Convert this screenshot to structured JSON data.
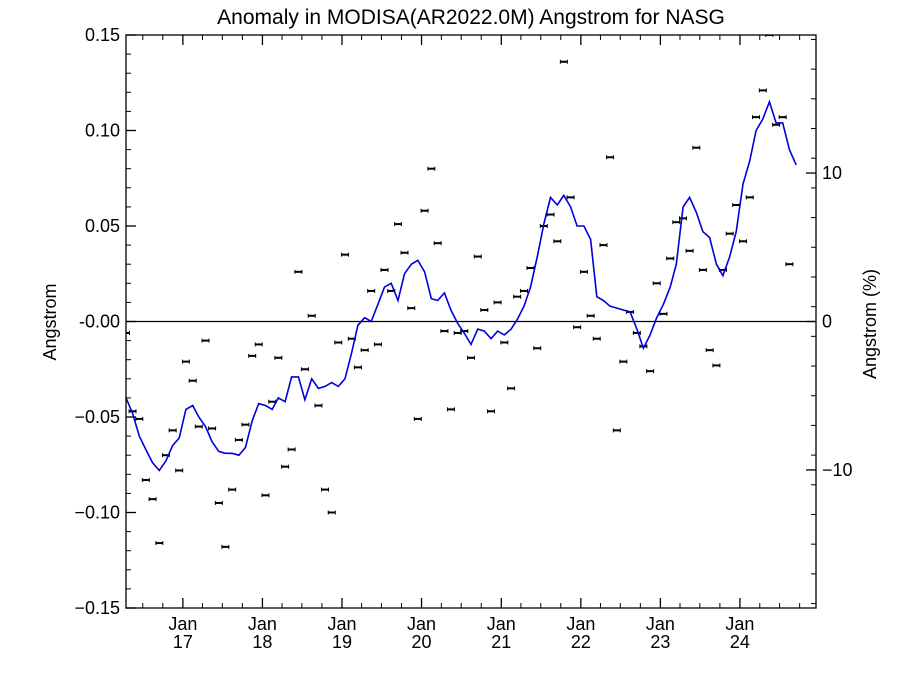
{
  "chart_data": {
    "type": "line",
    "title": "Anomaly in MODISA(AR2022.0M) Angstrom for NASG",
    "ylabel": "Angstrom",
    "y2label": "Angstrom (%)",
    "ylim": [
      -0.15,
      0.15
    ],
    "y2lim": [
      -19.3,
      19.3
    ],
    "xlim": [
      "2016-04-15",
      "2024-12-15"
    ],
    "yticks": [
      "0.15",
      "0.10",
      "0.05",
      "-0.00",
      "−0.05",
      "−0.10",
      "−0.15"
    ],
    "y2ticks": [
      "10",
      "0",
      "−10"
    ],
    "xticks": [
      {
        "month": "Jan",
        "year": "17",
        "date": "2017-01-01"
      },
      {
        "month": "Jan",
        "year": "18",
        "date": "2018-01-01"
      },
      {
        "month": "Jan",
        "year": "19",
        "date": "2019-01-01"
      },
      {
        "month": "Jan",
        "year": "20",
        "date": "2020-01-01"
      },
      {
        "month": "Jan",
        "year": "21",
        "date": "2021-01-01"
      },
      {
        "month": "Jan",
        "year": "22",
        "date": "2022-01-01"
      },
      {
        "month": "Jan",
        "year": "23",
        "date": "2023-01-01"
      },
      {
        "month": "Jan",
        "year": "24",
        "date": "2024-01-01"
      }
    ],
    "zero_line": true,
    "series": [
      {
        "kind": "monthly points",
        "style": "points with small error bars",
        "color": "#000000",
        "points": [
          [
            "2016-04-15",
            -0.006
          ],
          [
            "2016-05-15",
            -0.047
          ],
          [
            "2016-06-15",
            -0.051
          ],
          [
            "2016-07-15",
            -0.083
          ],
          [
            "2016-08-15",
            -0.093
          ],
          [
            "2016-09-15",
            -0.116
          ],
          [
            "2016-10-15",
            -0.07
          ],
          [
            "2016-11-15",
            -0.057
          ],
          [
            "2016-12-15",
            -0.078
          ],
          [
            "2017-01-15",
            -0.021
          ],
          [
            "2017-02-15",
            -0.031
          ],
          [
            "2017-03-15",
            -0.055
          ],
          [
            "2017-04-15",
            -0.01
          ],
          [
            "2017-05-15",
            -0.056
          ],
          [
            "2017-06-15",
            -0.095
          ],
          [
            "2017-07-15",
            -0.118
          ],
          [
            "2017-08-15",
            -0.088
          ],
          [
            "2017-09-15",
            -0.062
          ],
          [
            "2017-10-15",
            -0.054
          ],
          [
            "2017-11-15",
            -0.018
          ],
          [
            "2017-12-15",
            -0.012
          ],
          [
            "2018-01-15",
            -0.091
          ],
          [
            "2018-02-15",
            -0.042
          ],
          [
            "2018-03-15",
            -0.019
          ],
          [
            "2018-04-15",
            -0.076
          ],
          [
            "2018-05-15",
            -0.067
          ],
          [
            "2018-06-15",
            0.026
          ],
          [
            "2018-07-15",
            -0.025
          ],
          [
            "2018-08-15",
            0.003
          ],
          [
            "2018-09-15",
            -0.044
          ],
          [
            "2018-10-15",
            -0.088
          ],
          [
            "2018-11-15",
            -0.1
          ],
          [
            "2018-12-15",
            -0.011
          ],
          [
            "2019-01-15",
            0.035
          ],
          [
            "2019-02-15",
            -0.009
          ],
          [
            "2019-03-15",
            -0.024
          ],
          [
            "2019-04-15",
            -0.015
          ],
          [
            "2019-05-15",
            0.016
          ],
          [
            "2019-06-15",
            -0.012
          ],
          [
            "2019-07-15",
            0.027
          ],
          [
            "2019-08-15",
            0.016
          ],
          [
            "2019-09-15",
            0.051
          ],
          [
            "2019-10-15",
            0.036
          ],
          [
            "2019-11-15",
            0.007
          ],
          [
            "2019-12-15",
            -0.051
          ],
          [
            "2020-01-15",
            0.058
          ],
          [
            "2020-02-15",
            0.08
          ],
          [
            "2020-03-15",
            0.041
          ],
          [
            "2020-04-15",
            -0.005
          ],
          [
            "2020-05-15",
            -0.046
          ],
          [
            "2020-06-15",
            -0.006
          ],
          [
            "2020-07-15",
            -0.005
          ],
          [
            "2020-08-15",
            -0.019
          ],
          [
            "2020-09-15",
            0.034
          ],
          [
            "2020-10-15",
            0.006
          ],
          [
            "2020-11-15",
            -0.047
          ],
          [
            "2020-12-15",
            0.01
          ],
          [
            "2021-01-15",
            -0.011
          ],
          [
            "2021-02-15",
            -0.035
          ],
          [
            "2021-03-15",
            0.013
          ],
          [
            "2021-04-15",
            0.016
          ],
          [
            "2021-05-15",
            0.028
          ],
          [
            "2021-06-15",
            -0.014
          ],
          [
            "2021-07-15",
            0.05
          ],
          [
            "2021-08-15",
            0.056
          ],
          [
            "2021-09-15",
            0.042
          ],
          [
            "2021-10-15",
            0.136
          ],
          [
            "2021-11-15",
            0.065
          ],
          [
            "2021-12-15",
            -0.003
          ],
          [
            "2022-01-15",
            0.026
          ],
          [
            "2022-02-15",
            0.003
          ],
          [
            "2022-03-15",
            -0.009
          ],
          [
            "2022-04-15",
            0.04
          ],
          [
            "2022-05-15",
            0.086
          ],
          [
            "2022-06-15",
            -0.057
          ],
          [
            "2022-07-15",
            -0.021
          ],
          [
            "2022-08-15",
            0.005
          ],
          [
            "2022-09-15",
            -0.006
          ],
          [
            "2022-10-15",
            -0.013
          ],
          [
            "2022-11-15",
            -0.026
          ],
          [
            "2022-12-15",
            0.02
          ],
          [
            "2023-01-15",
            0.004
          ],
          [
            "2023-02-15",
            0.033
          ],
          [
            "2023-03-15",
            0.052
          ],
          [
            "2023-04-15",
            0.054
          ],
          [
            "2023-05-15",
            0.037
          ],
          [
            "2023-06-15",
            0.091
          ],
          [
            "2023-07-15",
            0.027
          ],
          [
            "2023-08-15",
            -0.015
          ],
          [
            "2023-09-15",
            -0.023
          ],
          [
            "2023-10-15",
            0.027
          ],
          [
            "2023-11-15",
            0.046
          ],
          [
            "2023-12-15",
            0.061
          ],
          [
            "2024-01-15",
            0.042
          ],
          [
            "2024-02-15",
            0.065
          ],
          [
            "2024-03-15",
            0.107
          ],
          [
            "2024-04-15",
            0.121
          ],
          [
            "2024-05-15",
            0.15
          ],
          [
            "2024-06-15",
            0.103
          ],
          [
            "2024-07-15",
            0.107
          ],
          [
            "2024-08-15",
            0.03
          ]
        ]
      },
      {
        "kind": "running mean",
        "style": "line",
        "color": "#0000dd",
        "points": [
          [
            "2016-04-15",
            -0.04
          ],
          [
            "2016-05-15",
            -0.048
          ],
          [
            "2016-06-15",
            -0.06
          ],
          [
            "2016-07-15",
            -0.067
          ],
          [
            "2016-08-15",
            -0.074
          ],
          [
            "2016-09-15",
            -0.078
          ],
          [
            "2016-10-15",
            -0.073
          ],
          [
            "2016-11-15",
            -0.065
          ],
          [
            "2016-12-15",
            -0.061
          ],
          [
            "2017-01-15",
            -0.046
          ],
          [
            "2017-02-15",
            -0.044
          ],
          [
            "2017-03-15",
            -0.05
          ],
          [
            "2017-04-15",
            -0.055
          ],
          [
            "2017-05-15",
            -0.063
          ],
          [
            "2017-06-15",
            -0.068
          ],
          [
            "2017-07-15",
            -0.069
          ],
          [
            "2017-08-15",
            -0.069
          ],
          [
            "2017-09-15",
            -0.07
          ],
          [
            "2017-10-15",
            -0.066
          ],
          [
            "2017-11-15",
            -0.052
          ],
          [
            "2017-12-15",
            -0.043
          ],
          [
            "2018-01-15",
            -0.044
          ],
          [
            "2018-02-15",
            -0.046
          ],
          [
            "2018-03-15",
            -0.04
          ],
          [
            "2018-04-15",
            -0.042
          ],
          [
            "2018-05-15",
            -0.029
          ],
          [
            "2018-06-15",
            -0.029
          ],
          [
            "2018-07-15",
            -0.041
          ],
          [
            "2018-08-15",
            -0.03
          ],
          [
            "2018-09-15",
            -0.035
          ],
          [
            "2018-10-15",
            -0.034
          ],
          [
            "2018-11-15",
            -0.032
          ],
          [
            "2018-12-15",
            -0.034
          ],
          [
            "2019-01-15",
            -0.03
          ],
          [
            "2019-02-15",
            -0.016
          ],
          [
            "2019-03-15",
            -0.002
          ],
          [
            "2019-04-15",
            0.002
          ],
          [
            "2019-05-15",
            0.0
          ],
          [
            "2019-06-15",
            0.009
          ],
          [
            "2019-07-15",
            0.018
          ],
          [
            "2019-08-15",
            0.02
          ],
          [
            "2019-09-15",
            0.011
          ],
          [
            "2019-10-15",
            0.025
          ],
          [
            "2019-11-15",
            0.03
          ],
          [
            "2019-12-15",
            0.032
          ],
          [
            "2020-01-15",
            0.026
          ],
          [
            "2020-02-15",
            0.012
          ],
          [
            "2020-03-15",
            0.011
          ],
          [
            "2020-04-15",
            0.015
          ],
          [
            "2020-05-15",
            0.006
          ],
          [
            "2020-06-15",
            -0.001
          ],
          [
            "2020-07-15",
            -0.006
          ],
          [
            "2020-08-15",
            -0.012
          ],
          [
            "2020-09-15",
            -0.004
          ],
          [
            "2020-10-15",
            -0.005
          ],
          [
            "2020-11-15",
            -0.009
          ],
          [
            "2020-12-15",
            -0.005
          ],
          [
            "2021-01-15",
            -0.007
          ],
          [
            "2021-02-15",
            -0.004
          ],
          [
            "2021-03-15",
            0.001
          ],
          [
            "2021-04-15",
            0.008
          ],
          [
            "2021-05-15",
            0.018
          ],
          [
            "2021-06-15",
            0.034
          ],
          [
            "2021-07-15",
            0.051
          ],
          [
            "2021-08-15",
            0.065
          ],
          [
            "2021-09-15",
            0.061
          ],
          [
            "2021-10-15",
            0.066
          ],
          [
            "2021-11-15",
            0.06
          ],
          [
            "2021-12-15",
            0.05
          ],
          [
            "2022-01-15",
            0.05
          ],
          [
            "2022-02-15",
            0.043
          ],
          [
            "2022-03-15",
            0.013
          ],
          [
            "2022-04-15",
            0.011
          ],
          [
            "2022-05-15",
            0.008
          ],
          [
            "2022-06-15",
            0.007
          ],
          [
            "2022-07-15",
            0.006
          ],
          [
            "2022-08-15",
            0.005
          ],
          [
            "2022-09-15",
            -0.004
          ],
          [
            "2022-10-15",
            -0.014
          ],
          [
            "2022-11-15",
            -0.007
          ],
          [
            "2022-12-15",
            0.002
          ],
          [
            "2023-01-15",
            0.009
          ],
          [
            "2023-02-15",
            0.018
          ],
          [
            "2023-03-15",
            0.03
          ],
          [
            "2023-04-15",
            0.06
          ],
          [
            "2023-05-15",
            0.065
          ],
          [
            "2023-06-15",
            0.057
          ],
          [
            "2023-07-15",
            0.047
          ],
          [
            "2023-08-15",
            0.044
          ],
          [
            "2023-09-15",
            0.03
          ],
          [
            "2023-10-15",
            0.024
          ],
          [
            "2023-11-15",
            0.034
          ],
          [
            "2023-12-15",
            0.047
          ],
          [
            "2024-01-15",
            0.072
          ],
          [
            "2024-02-15",
            0.084
          ],
          [
            "2024-03-15",
            0.1
          ],
          [
            "2024-04-15",
            0.106
          ],
          [
            "2024-05-15",
            0.115
          ],
          [
            "2024-06-15",
            0.104
          ],
          [
            "2024-07-15",
            0.104
          ],
          [
            "2024-08-15",
            0.09
          ],
          [
            "2024-09-15",
            0.082
          ]
        ]
      }
    ]
  }
}
